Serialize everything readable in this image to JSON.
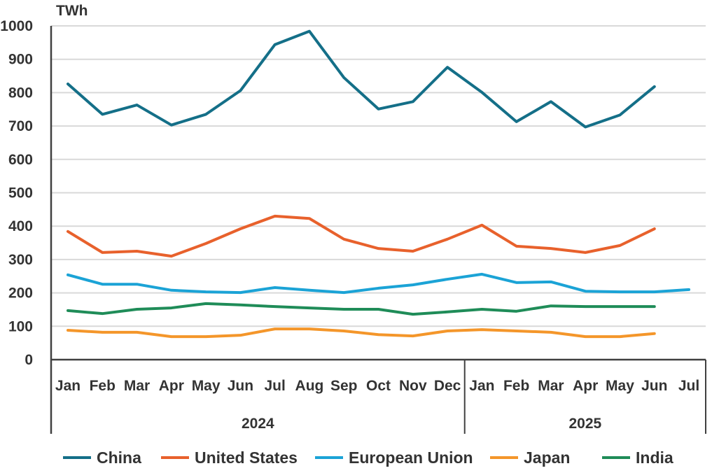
{
  "chart_data": {
    "type": "line",
    "ylabel": "TWh",
    "ylim": [
      0,
      1000
    ],
    "yticks": [
      0,
      100,
      200,
      300,
      400,
      500,
      600,
      700,
      800,
      900,
      1000
    ],
    "grid": true,
    "legend_position": "bottom",
    "categories": [
      "Jan",
      "Feb",
      "Mar",
      "Apr",
      "May",
      "Jun",
      "Jul",
      "Aug",
      "Sep",
      "Oct",
      "Nov",
      "Dec",
      "Jan",
      "Feb",
      "Mar",
      "Apr",
      "May",
      "Jun",
      "Jul"
    ],
    "groups": [
      {
        "label": "2024",
        "count": 12
      },
      {
        "label": "2025",
        "count": 7
      }
    ],
    "series": [
      {
        "name": "China",
        "color": "#146f88",
        "values": [
          826,
          735,
          763,
          703,
          735,
          806,
          944,
          984,
          845,
          751,
          773,
          876,
          801,
          713,
          773,
          697,
          733,
          818,
          null
        ]
      },
      {
        "name": "United States",
        "color": "#e8612c",
        "values": [
          384,
          321,
          325,
          310,
          348,
          392,
          430,
          423,
          361,
          333,
          325,
          361,
          403,
          340,
          333,
          321,
          342,
          392,
          null
        ]
      },
      {
        "name": "European Union",
        "color": "#1ba3d6",
        "values": [
          254,
          226,
          226,
          208,
          203,
          201,
          216,
          208,
          201,
          214,
          224,
          241,
          256,
          231,
          233,
          205,
          203,
          203,
          210
        ]
      },
      {
        "name": "Japan",
        "color": "#f4962a",
        "values": [
          88,
          82,
          82,
          69,
          69,
          73,
          92,
          92,
          86,
          75,
          71,
          86,
          90,
          86,
          82,
          69,
          69,
          78,
          null
        ]
      },
      {
        "name": "India",
        "color": "#1f8c58",
        "values": [
          147,
          138,
          151,
          155,
          168,
          164,
          159,
          155,
          151,
          151,
          136,
          143,
          151,
          145,
          161,
          159,
          159,
          159,
          null
        ]
      }
    ]
  }
}
